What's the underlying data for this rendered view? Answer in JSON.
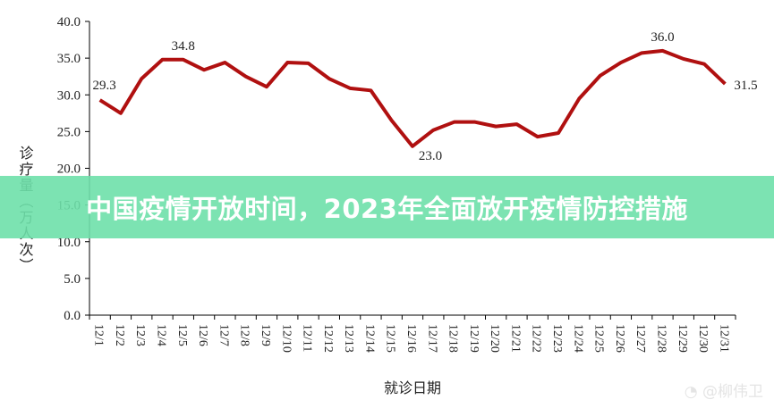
{
  "chart_data": {
    "type": "line",
    "xlabel": "就诊日期",
    "ylabel": "诊疗量（万人次）",
    "ylim": [
      0,
      40
    ],
    "yticks": [
      "0.0",
      "5.0",
      "10.0",
      "15.0",
      "20.0",
      "25.0",
      "30.0",
      "35.0",
      "40.0"
    ],
    "grid": false,
    "categories": [
      "12/1",
      "12/2",
      "12/3",
      "12/4",
      "12/5",
      "12/6",
      "12/7",
      "12/8",
      "12/9",
      "12/10",
      "12/11",
      "12/12",
      "12/13",
      "12/14",
      "12/15",
      "12/16",
      "12/17",
      "12/18",
      "12/19",
      "12/20",
      "12/21",
      "12/22",
      "12/23",
      "12/24",
      "12/25",
      "12/26",
      "12/27",
      "12/28",
      "12/29",
      "12/30",
      "12/31"
    ],
    "values": [
      29.3,
      27.5,
      32.2,
      34.8,
      34.8,
      33.4,
      34.4,
      32.5,
      31.1,
      34.4,
      34.3,
      32.2,
      30.9,
      30.6,
      26.5,
      23.0,
      25.2,
      26.3,
      26.3,
      25.7,
      26.0,
      24.3,
      24.8,
      29.5,
      32.6,
      34.4,
      35.7,
      36.0,
      34.9,
      34.2,
      31.5
    ],
    "data_labels": [
      {
        "index": 0,
        "text": "29.3"
      },
      {
        "index": 4,
        "text": "34.8"
      },
      {
        "index": 15,
        "text": "23.0"
      },
      {
        "index": 27,
        "text": "36.0"
      },
      {
        "index": 30,
        "text": "31.5"
      }
    ],
    "line_color": "#b01010"
  },
  "banner": {
    "title": "中国疫情开放时间，2023年全面放开疫情防控措施"
  },
  "watermark": {
    "text": "@柳伟卫"
  }
}
